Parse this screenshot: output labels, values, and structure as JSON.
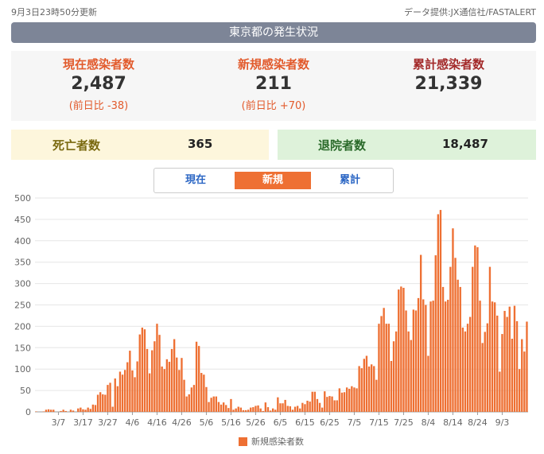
{
  "header": {
    "updated": "9月3日23時50分更新",
    "source": "データ提供:JX通信社/FASTALERT"
  },
  "banner": "東京都の発生状況",
  "stats": {
    "current": {
      "label": "現在感染者数",
      "value": "2,487",
      "diff": "(前日比 -38)"
    },
    "new": {
      "label": "新規感染者数",
      "value": "211",
      "diff": "(前日比 +70)"
    },
    "total": {
      "label": "累計感染者数",
      "value": "21,339"
    }
  },
  "deaths": {
    "label": "死亡者数",
    "value": "365"
  },
  "discharged": {
    "label": "退院者数",
    "value": "18,487"
  },
  "tabs": [
    {
      "label": "現在"
    },
    {
      "label": "新規"
    },
    {
      "label": "累計"
    }
  ],
  "colors": {
    "bar": "#ee7033",
    "grid": "#e6e6e6"
  },
  "chart_data": {
    "type": "bar",
    "title": "",
    "legend": "新規感染者数",
    "ylim": [
      0,
      500
    ],
    "yticks": [
      0,
      50,
      100,
      150,
      200,
      250,
      300,
      350,
      400,
      450,
      500
    ],
    "xticks": [
      "3/7",
      "3/17",
      "3/27",
      "4/6",
      "4/16",
      "4/26",
      "5/6",
      "5/16",
      "5/26",
      "6/5",
      "6/15",
      "6/25",
      "7/5",
      "7/15",
      "7/25",
      "8/4",
      "8/14",
      "8/24",
      "9/3"
    ],
    "start_date": "2020-02-27",
    "series": [
      {
        "name": "新規感染者数",
        "values": [
          1,
          0,
          0,
          1,
          5,
          6,
          5,
          5,
          0,
          0,
          2,
          5,
          2,
          0,
          5,
          3,
          0,
          8,
          10,
          6,
          5,
          10,
          7,
          17,
          16,
          40,
          46,
          41,
          40,
          63,
          68,
          12,
          78,
          60,
          94,
          87,
          98,
          116,
          143,
          97,
          81,
          118,
          181,
          197,
          193,
          147,
          90,
          144,
          165,
          206,
          180,
          106,
          100,
          123,
          117,
          147,
          170,
          127,
          98,
          126,
          75,
          36,
          41,
          57,
          63,
          164,
          154,
          91,
          87,
          58,
          23,
          33,
          36,
          36,
          23,
          17,
          22,
          16,
          9,
          30,
          5,
          8,
          12,
          10,
          4,
          4,
          5,
          10,
          11,
          14,
          15,
          8,
          2,
          22,
          11,
          3,
          8,
          5,
          34,
          20,
          20,
          28,
          14,
          13,
          5,
          12,
          14,
          8,
          21,
          18,
          26,
          24,
          47,
          47,
          30,
          21,
          10,
          48,
          35,
          37,
          36,
          27,
          27,
          55,
          45,
          46,
          57,
          54,
          60,
          57,
          55,
          107,
          102,
          124,
          131,
          106,
          111,
          107,
          75,
          206,
          224,
          243,
          206,
          206,
          119,
          165,
          188,
          286,
          293,
          290,
          237,
          188,
          168,
          239,
          237,
          266,
          367,
          263,
          250,
          131,
          258,
          260,
          366,
          462,
          472,
          292,
          258,
          262,
          339,
          429,
          360,
          309,
          292,
          197,
          188,
          206,
          222,
          339,
          389,
          385,
          260,
          161,
          187,
          207,
          339,
          258,
          256,
          225,
          94,
          182,
          236,
          222,
          246,
          171,
          248,
          212,
          100,
          170,
          141,
          211
        ]
      }
    ]
  }
}
